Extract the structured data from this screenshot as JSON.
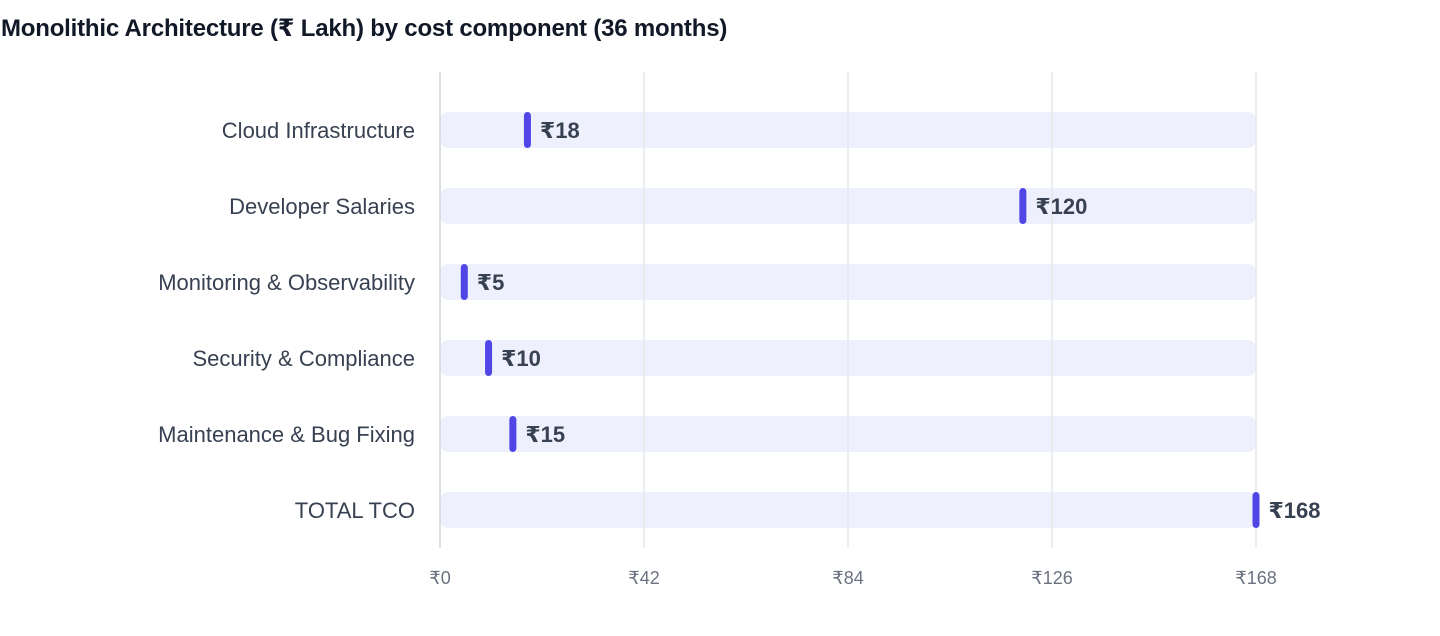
{
  "chart_data": {
    "type": "bar",
    "title": "Monolithic Architecture (₹ Lakh) by cost component (36 months)",
    "categories": [
      "Cloud Infrastructure",
      "Developer Salaries",
      "Monitoring & Observability",
      "Security & Compliance",
      "Maintenance & Bug Fixing",
      "TOTAL TCO"
    ],
    "values": [
      18,
      120,
      5,
      10,
      15,
      168
    ],
    "value_labels": [
      "₹18",
      "₹120",
      "₹5",
      "₹10",
      "₹15",
      "₹168"
    ],
    "xlim": [
      0,
      168
    ],
    "x_ticks": [
      0,
      42,
      84,
      126,
      168
    ],
    "x_tick_labels": [
      "₹0",
      "₹42",
      "₹84",
      "₹126",
      "₹168"
    ],
    "orientation": "horizontal",
    "grid": true,
    "xlabel": "",
    "ylabel": "",
    "colors": {
      "marker": "#4f46e5",
      "track": "#eef1fd",
      "grid": "#e5e7eb"
    }
  }
}
